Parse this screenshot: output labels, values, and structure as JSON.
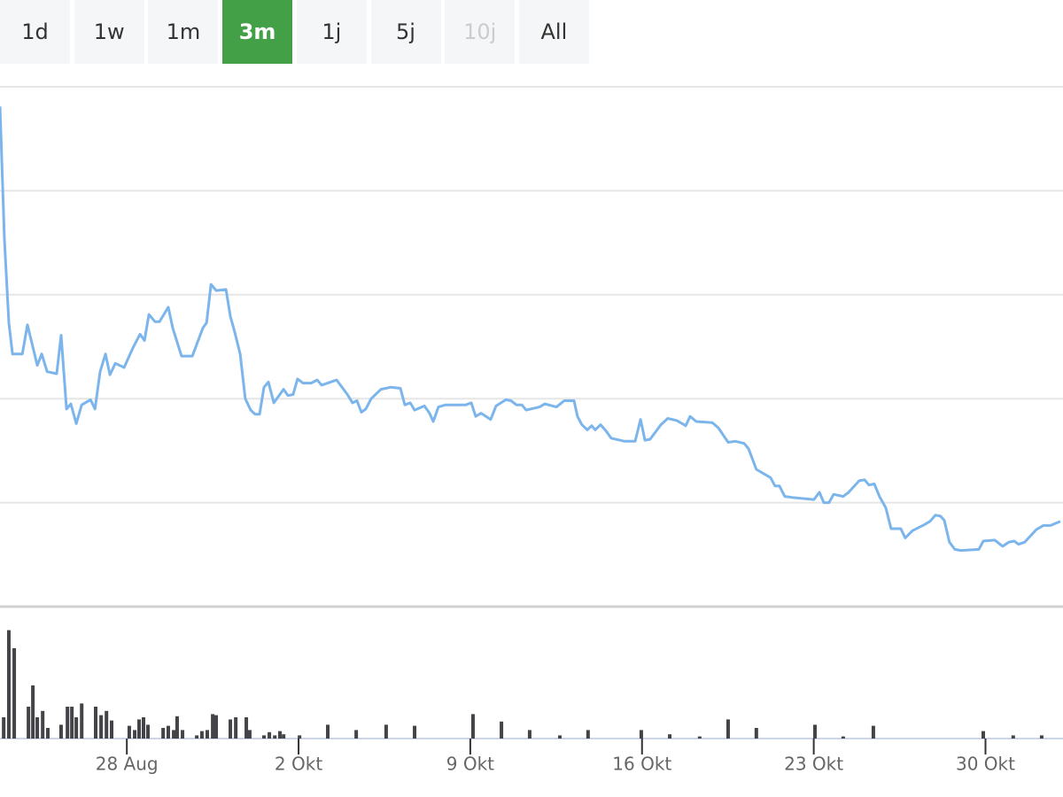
{
  "range_buttons": [
    {
      "label": "1d"
    },
    {
      "label": "1w"
    },
    {
      "label": "1m"
    },
    {
      "label": "3m",
      "active": true
    },
    {
      "label": "1j"
    },
    {
      "label": "5j"
    },
    {
      "label": "10j",
      "disabled": true
    },
    {
      "label": "All"
    }
  ],
  "chart_data": [
    {
      "type": "line",
      "color": "#7cb5ec",
      "grid": true,
      "xlim": [
        -12.17,
        31.16
      ],
      "ylim": [
        0,
        50
      ],
      "yticks": [
        0,
        10,
        20,
        30,
        40,
        50
      ],
      "x": [
        -12.17,
        -11.99,
        -11.81,
        -11.66,
        -11.26,
        -11.05,
        -10.65,
        -10.47,
        -10.25,
        -9.86,
        -9.68,
        -9.46,
        -9.28,
        -9.06,
        -8.84,
        -8.48,
        -8.3,
        -8.09,
        -7.87,
        -7.69,
        -7.47,
        -7.11,
        -6.75,
        -6.46,
        -6.28,
        -6.1,
        -5.85,
        -5.67,
        -5.31,
        -5.13,
        -4.77,
        -4.33,
        -3.9,
        -3.75,
        -3.57,
        -3.36,
        -2.96,
        -2.78,
        -2.6,
        -2.38,
        -2.17,
        -1.95,
        -1.77,
        -1.59,
        -1.41,
        -1.23,
        -1.01,
        -0.61,
        -0.43,
        -0.22,
        -0.04,
        0.18,
        0.51,
        0.76,
        0.94,
        1.55,
        1.99,
        2.2,
        2.38,
        2.56,
        2.74,
        2.96,
        3.36,
        3.75,
        4.15,
        4.33,
        4.55,
        4.73,
        5.13,
        5.34,
        5.49,
        5.7,
        5.99,
        6.82,
        7.04,
        7.22,
        7.44,
        7.83,
        8.05,
        8.45,
        8.66,
        8.88,
        9.1,
        9.28,
        9.82,
        10.04,
        10.51,
        10.83,
        11.23,
        11.37,
        11.55,
        11.77,
        11.95,
        12.09,
        12.31,
        12.53,
        12.74,
        13.29,
        13.72,
        13.94,
        14.12,
        14.33,
        14.77,
        15.05,
        15.42,
        15.78,
        15.96,
        16.21,
        16.86,
        17.11,
        17.51,
        17.8,
        18.16,
        18.34,
        18.66,
        19.24,
        19.42,
        19.6,
        19.82,
        20.11,
        21.01,
        21.23,
        21.41,
        21.62,
        21.81,
        22.2,
        22.42,
        22.85,
        23.07,
        23.25,
        23.47,
        23.68,
        23.94,
        24.15,
        24.55,
        24.73,
        25.02,
        25.52,
        25.74,
        25.96,
        26.17,
        26.32,
        26.53,
        26.75,
        27.0,
        27.73,
        27.91,
        28.38,
        28.7,
        28.95,
        29.17,
        29.35,
        29.6,
        30.07,
        30.36,
        30.65,
        31.05
      ],
      "values": [
        48.1,
        35.3,
        27.3,
        24.3,
        24.3,
        27.1,
        23.2,
        24.3,
        22.6,
        22.4,
        26.1,
        19.0,
        19.5,
        17.6,
        19.4,
        19.9,
        19.0,
        22.6,
        24.3,
        22.3,
        23.4,
        23.0,
        24.9,
        26.2,
        25.6,
        28.1,
        27.4,
        27.4,
        28.8,
        26.8,
        24.1,
        24.1,
        26.8,
        27.3,
        31.0,
        30.4,
        30.5,
        27.9,
        26.4,
        24.3,
        20.0,
        18.9,
        18.5,
        18.5,
        21.1,
        21.6,
        19.6,
        20.9,
        20.3,
        20.4,
        21.9,
        21.5,
        21.5,
        21.8,
        21.3,
        21.8,
        20.4,
        19.6,
        19.8,
        18.7,
        19.0,
        20.0,
        20.9,
        21.1,
        21.0,
        19.4,
        19.6,
        18.9,
        19.3,
        18.6,
        17.8,
        19.2,
        19.4,
        19.4,
        19.6,
        18.3,
        18.6,
        18.0,
        19.3,
        19.9,
        19.8,
        19.4,
        19.4,
        18.9,
        19.2,
        19.5,
        19.2,
        19.8,
        19.8,
        18.3,
        17.5,
        17.0,
        17.4,
        17.0,
        17.5,
        16.9,
        16.2,
        15.9,
        15.9,
        18.0,
        16.0,
        16.1,
        17.5,
        18.1,
        17.9,
        17.4,
        18.3,
        17.8,
        17.7,
        17.2,
        15.8,
        15.9,
        15.7,
        15.2,
        13.2,
        12.4,
        11.6,
        11.6,
        10.6,
        10.5,
        10.3,
        11.0,
        10.0,
        10.0,
        10.8,
        10.6,
        11.0,
        12.1,
        12.2,
        11.7,
        11.8,
        10.6,
        9.5,
        7.5,
        7.5,
        6.6,
        7.3,
        7.9,
        8.2,
        8.8,
        8.7,
        8.3,
        6.2,
        5.5,
        5.4,
        5.5,
        6.3,
        6.4,
        5.8,
        6.2,
        6.3,
        6.0,
        6.2,
        7.4,
        7.8,
        7.8,
        8.2
      ]
    },
    {
      "type": "bar",
      "color": "#434348",
      "xlim": [
        -12.17,
        31.16
      ],
      "ylim": [
        0,
        12
      ],
      "xticks": [
        {
          "value": -7,
          "label": "28 Aug"
        },
        {
          "value": 0,
          "label": "2 Okt"
        },
        {
          "value": 7,
          "label": "9 Okt"
        },
        {
          "value": 14,
          "label": "16 Okt"
        },
        {
          "value": 21,
          "label": "23 Okt"
        },
        {
          "value": 28,
          "label": "30 Okt"
        }
      ],
      "x": [
        -12.02,
        -11.81,
        -11.59,
        -11.01,
        -10.83,
        -10.65,
        -10.43,
        -10.22,
        -9.68,
        -9.42,
        -9.24,
        -9.06,
        -8.84,
        -8.27,
        -8.05,
        -7.83,
        -7.62,
        -6.9,
        -6.68,
        -6.5,
        -6.32,
        -6.14,
        -5.52,
        -5.31,
        -5.09,
        -4.95,
        -4.73,
        -4.15,
        -3.94,
        -3.72,
        -3.5,
        -3.36,
        -2.78,
        -2.56,
        -2.13,
        -1.99,
        -1.41,
        -1.19,
        -0.97,
        -0.76,
        -0.61,
        0.04,
        1.19,
        2.35,
        3.57,
        4.73,
        7.11,
        8.27,
        9.42,
        10.65,
        11.8,
        13.97,
        15.13,
        16.35,
        17.51,
        18.66,
        21.05,
        22.2,
        23.43,
        27.91,
        29.13,
        30.29
      ],
      "values": [
        2.0,
        10.2,
        8.5,
        3.0,
        5.0,
        2.0,
        2.6,
        1.0,
        1.3,
        3.0,
        3.0,
        2.0,
        3.3,
        3.0,
        2.2,
        2.6,
        1.7,
        1.2,
        0.8,
        1.8,
        2.0,
        1.3,
        1.0,
        1.2,
        0.8,
        2.1,
        0.8,
        0.3,
        0.7,
        0.8,
        2.3,
        2.2,
        1.8,
        2.0,
        2.0,
        0.8,
        0.3,
        0.6,
        0.3,
        0.7,
        0.4,
        0.3,
        1.3,
        0.8,
        1.3,
        1.2,
        2.3,
        1.6,
        0.8,
        0.3,
        0.8,
        0.8,
        0.4,
        0.2,
        1.8,
        1.0,
        1.3,
        0.2,
        1.2,
        0.7,
        0.3,
        0.3
      ]
    }
  ]
}
